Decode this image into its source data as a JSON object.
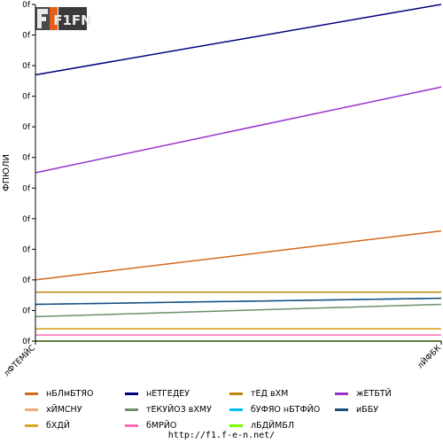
{
  "chart_data": {
    "type": "line",
    "ylabel": "ФПЮЛИ",
    "yticks": [
      "0f",
      "0f",
      "0f",
      "0f",
      "0f",
      "0f",
      "0f",
      "0f",
      "0f",
      "0f",
      "0f",
      "0f"
    ],
    "categories": [
      "лФТЕМЙС",
      "лЙФБК"
    ],
    "ylim": [
      0,
      11
    ],
    "grid": false,
    "legend_position": "bottom",
    "series": [
      {
        "name": "нБЛмБТЯО",
        "color": "#d2691e",
        "values": [
          2.0,
          3.6
        ]
      },
      {
        "name": "нЕТГЕДЕУ",
        "color": "#000080",
        "values": [
          8.7,
          11.0
        ]
      },
      {
        "name": "тЕД вХМ",
        "color": "#b8860b",
        "values": [
          1.6,
          1.6
        ]
      },
      {
        "name": "жЕТБТЙ",
        "color": "#9932cc",
        "values": [
          5.5,
          8.3
        ]
      },
      {
        "name": "хЙМСНУ",
        "color": "#f4a582",
        "values": [
          0.4,
          0.4
        ]
      },
      {
        "name": "тЕКУЙОЗ вХМУ",
        "color": "#6b8e6b",
        "values": [
          0.8,
          1.2
        ]
      },
      {
        "name": "бУФЯО нБТФЙО",
        "color": "#00bfff",
        "values": [
          1.2,
          1.4
        ]
      },
      {
        "name": "иББУ",
        "color": "#1e4d7a",
        "values": [
          1.2,
          1.4
        ]
      },
      {
        "name": "бХДЙ",
        "color": "#daa520",
        "values": [
          0.4,
          0.4
        ]
      },
      {
        "name": "бМРЙО",
        "color": "#ff69b4",
        "values": [
          0.2,
          0.2
        ]
      },
      {
        "name": "лБДЙМБЛ",
        "color": "#7cfc00",
        "values": [
          0.0,
          0.0
        ]
      }
    ]
  },
  "logo": {
    "text": "F1FN"
  },
  "footer": {
    "url": "http://f1.f-e-n.net/"
  }
}
